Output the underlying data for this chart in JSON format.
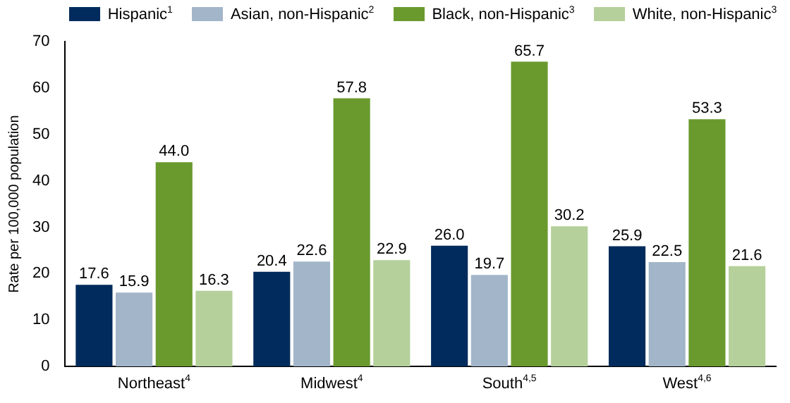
{
  "chart_data": {
    "type": "bar",
    "ylabel": "Rate per 100,000 population",
    "categories": [
      "Northeast$^{4}$",
      "Midwest$^{4}$",
      "South$^{4,5}$",
      "West$^{4,6}$"
    ],
    "series": [
      {
        "name": "Hispanic$^{1}$",
        "color": "#002b5c",
        "values": [
          17.6,
          20.4,
          26.0,
          25.9
        ],
        "value_labels": [
          "17.6",
          "20.4",
          "26.0",
          "25.9"
        ]
      },
      {
        "name": "Asian, non-Hispanic$^{2}$",
        "color": "#a3b5c8",
        "values": [
          15.9,
          22.6,
          19.7,
          22.5
        ],
        "value_labels": [
          "15.9",
          "22.6",
          "19.7",
          "22.5"
        ]
      },
      {
        "name": "Black, non-Hispanic$^{3}$",
        "color": "#6a9a2e",
        "values": [
          44.0,
          57.8,
          65.7,
          53.3
        ],
        "value_labels": [
          "44.0",
          "57.8",
          "65.7",
          "53.3"
        ]
      },
      {
        "name": "White, non-Hispanic$^{3}$",
        "color": "#b5d09a",
        "values": [
          16.3,
          22.9,
          30.2,
          21.6
        ],
        "value_labels": [
          "16.3",
          "22.9",
          "30.2",
          "21.6"
        ]
      }
    ],
    "ylim": [
      0,
      70
    ],
    "yticks": [
      0,
      10,
      20,
      30,
      40,
      50,
      60,
      70
    ],
    "grid": false,
    "legend": "top"
  }
}
